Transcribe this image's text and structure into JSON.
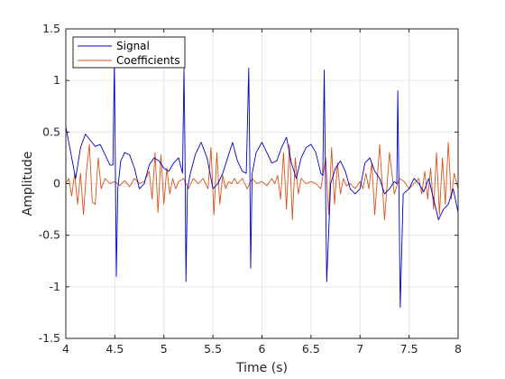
{
  "chart_data": {
    "type": "line",
    "title": "",
    "xlabel": "Time (s)",
    "ylabel": "Amplitude",
    "xlim": [
      4,
      8
    ],
    "ylim": [
      -1.5,
      1.5
    ],
    "x_ticks": [
      4,
      4.5,
      5,
      5.5,
      6,
      6.5,
      7,
      7.5,
      8
    ],
    "x_tick_labels": [
      "4",
      "4.5",
      "5",
      "5.5",
      "6",
      "6.5",
      "7",
      "7.5",
      "8"
    ],
    "y_ticks": [
      -1.5,
      -1,
      -0.5,
      0,
      0.5,
      1,
      1.5
    ],
    "y_tick_labels": [
      "-1.5",
      "-1",
      "-0.5",
      "0",
      "0.5",
      "1",
      "1.5"
    ],
    "grid": true,
    "legend_position": "top-left",
    "series": [
      {
        "name": "Signal",
        "color": "#0000cc",
        "x": [
          4.0,
          4.05,
          4.1,
          4.15,
          4.2,
          4.25,
          4.3,
          4.35,
          4.4,
          4.45,
          4.48,
          4.495,
          4.505,
          4.515,
          4.53,
          4.56,
          4.6,
          4.65,
          4.7,
          4.75,
          4.8,
          4.85,
          4.9,
          4.95,
          5.0,
          5.05,
          5.1,
          5.15,
          5.19,
          5.205,
          5.215,
          5.225,
          5.24,
          5.27,
          5.32,
          5.38,
          5.44,
          5.5,
          5.55,
          5.6,
          5.65,
          5.7,
          5.75,
          5.8,
          5.84,
          5.865,
          5.875,
          5.885,
          5.9,
          5.94,
          6.0,
          6.05,
          6.1,
          6.15,
          6.2,
          6.25,
          6.3,
          6.35,
          6.4,
          6.45,
          6.5,
          6.55,
          6.6,
          6.62,
          6.635,
          6.645,
          6.66,
          6.7,
          6.75,
          6.8,
          6.85,
          6.9,
          6.95,
          7.0,
          7.05,
          7.1,
          7.15,
          7.2,
          7.25,
          7.3,
          7.35,
          7.375,
          7.385,
          7.395,
          7.41,
          7.44,
          7.5,
          7.55,
          7.6,
          7.65,
          7.7,
          7.75,
          7.8,
          7.85,
          7.9,
          7.95,
          8.0
        ],
        "values": [
          0.55,
          0.3,
          0.05,
          0.35,
          0.48,
          0.42,
          0.36,
          0.38,
          0.28,
          0.18,
          0.18,
          1.18,
          0.2,
          -0.9,
          -0.05,
          0.22,
          0.3,
          0.28,
          0.15,
          -0.05,
          0.0,
          0.18,
          0.25,
          0.22,
          0.15,
          0.12,
          0.2,
          0.25,
          0.1,
          1.12,
          0.3,
          -0.95,
          -0.05,
          0.1,
          0.28,
          0.4,
          0.25,
          -0.05,
          0.0,
          0.1,
          0.25,
          0.4,
          0.22,
          0.12,
          0.1,
          1.12,
          0.3,
          -0.82,
          0.1,
          0.3,
          0.4,
          0.3,
          0.2,
          0.22,
          0.35,
          0.45,
          0.2,
          0.05,
          0.25,
          0.35,
          0.38,
          0.3,
          0.1,
          0.08,
          1.1,
          0.25,
          -0.95,
          0.0,
          0.15,
          0.22,
          0.12,
          -0.05,
          -0.1,
          -0.05,
          0.2,
          0.25,
          0.12,
          0.05,
          -0.1,
          -0.05,
          0.02,
          0.0,
          0.9,
          0.1,
          -1.2,
          -0.1,
          -0.05,
          0.05,
          0.0,
          -0.08,
          0.05,
          -0.15,
          -0.35,
          -0.25,
          -0.2,
          -0.05,
          -0.28
        ]
      },
      {
        "name": "Coefficients",
        "color": "#d95319",
        "x": [
          4.0,
          4.03,
          4.06,
          4.09,
          4.12,
          4.15,
          4.18,
          4.21,
          4.24,
          4.27,
          4.3,
          4.33,
          4.36,
          4.4,
          4.45,
          4.5,
          4.55,
          4.6,
          4.65,
          4.7,
          4.75,
          4.8,
          4.85,
          4.88,
          4.91,
          4.94,
          4.97,
          5.0,
          5.03,
          5.06,
          5.09,
          5.12,
          5.15,
          5.2,
          5.25,
          5.3,
          5.35,
          5.4,
          5.45,
          5.48,
          5.51,
          5.54,
          5.57,
          5.6,
          5.63,
          5.66,
          5.69,
          5.72,
          5.75,
          5.8,
          5.85,
          5.9,
          5.95,
          6.0,
          6.05,
          6.1,
          6.13,
          6.16,
          6.19,
          6.22,
          6.25,
          6.28,
          6.31,
          6.34,
          6.37,
          6.4,
          6.45,
          6.5,
          6.55,
          6.6,
          6.65,
          6.68,
          6.71,
          6.74,
          6.77,
          6.8,
          6.83,
          6.86,
          6.9,
          6.95,
          7.0,
          7.03,
          7.06,
          7.09,
          7.12,
          7.15,
          7.2,
          7.25,
          7.3,
          7.35,
          7.4,
          7.45,
          7.5,
          7.55,
          7.6,
          7.63,
          7.66,
          7.69,
          7.72,
          7.75,
          7.78,
          7.81,
          7.84,
          7.87,
          7.9,
          7.93,
          7.96,
          8.0
        ],
        "values": [
          0.0,
          0.05,
          -0.12,
          0.1,
          -0.2,
          0.1,
          -0.3,
          0.12,
          0.38,
          -0.18,
          -0.2,
          0.25,
          -0.05,
          0.05,
          0.0,
          0.02,
          -0.02,
          0.03,
          -0.03,
          0.05,
          0.0,
          0.02,
          0.12,
          -0.15,
          0.3,
          -0.28,
          0.28,
          -0.2,
          0.15,
          -0.1,
          0.05,
          -0.05,
          0.02,
          0.05,
          -0.05,
          0.05,
          0.0,
          0.05,
          -0.05,
          0.35,
          -0.3,
          0.3,
          -0.2,
          0.08,
          -0.05,
          0.02,
          0.0,
          0.05,
          0.0,
          0.05,
          -0.05,
          0.05,
          0.0,
          0.02,
          -0.02,
          0.05,
          0.0,
          0.08,
          -0.15,
          0.3,
          -0.25,
          0.38,
          -0.35,
          0.25,
          -0.1,
          0.05,
          0.0,
          0.02,
          0.0,
          -0.05,
          0.25,
          -0.3,
          0.35,
          -0.2,
          0.2,
          -0.1,
          0.05,
          -0.02,
          0.0,
          -0.05,
          0.02,
          -0.05,
          0.1,
          -0.05,
          0.2,
          -0.3,
          0.38,
          -0.35,
          0.3,
          -0.1,
          0.05,
          0.02,
          -0.05,
          0.0,
          0.05,
          -0.1,
          0.12,
          -0.15,
          0.15,
          -0.25,
          0.3,
          -0.3,
          0.25,
          -0.2,
          0.4,
          -0.15,
          0.1,
          -0.05
        ]
      }
    ]
  }
}
